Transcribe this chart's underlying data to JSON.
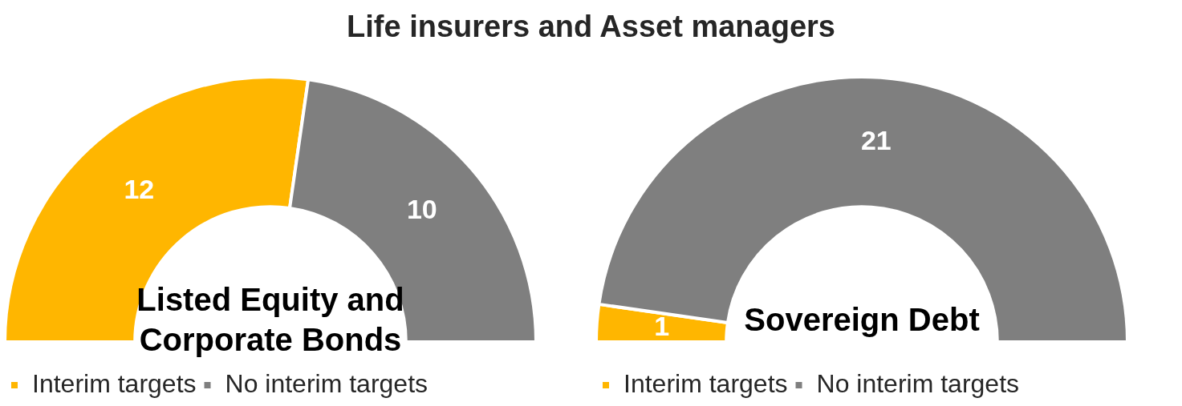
{
  "chart_data": [
    {
      "type": "donut",
      "title": "Life insurers and Asset managers",
      "subtitle": "Listed Equity and Corporate Bonds",
      "categories": [
        "Interim targets",
        "No interim targets"
      ],
      "values": [
        12,
        10
      ],
      "colors": [
        "#ffb600",
        "#7f7f7f"
      ],
      "data_labels": true,
      "legend": "bottom"
    },
    {
      "type": "donut",
      "subtitle": "Sovereign Debt",
      "categories": [
        "Interim targets",
        "No interim targets"
      ],
      "values": [
        1,
        21
      ],
      "colors": [
        "#ffb600",
        "#7f7f7f"
      ],
      "data_labels": true,
      "legend": "bottom"
    }
  ]
}
